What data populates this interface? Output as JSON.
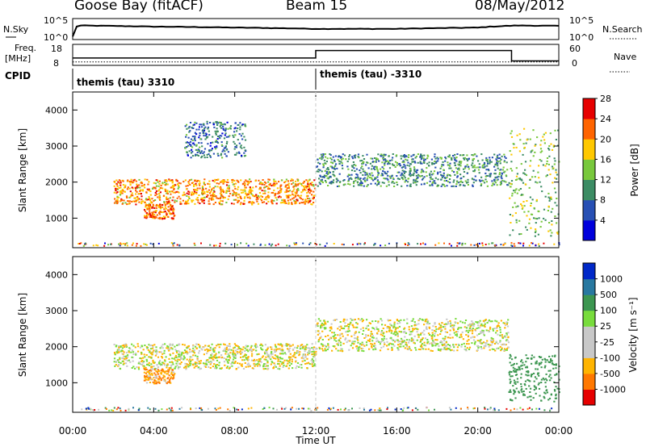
{
  "header": {
    "station": "Goose Bay (fitACF)",
    "beam": "Beam 15",
    "date": "08/May/2012"
  },
  "panels": {
    "nsky": {
      "left_label": "N.Sky",
      "right_label": "N.Search",
      "left_ticks": [
        "10^5",
        "10^0"
      ],
      "right_ticks": [
        "10^5",
        "10^0"
      ]
    },
    "freq": {
      "left_label": "Freq.",
      "left_unit": "[MHz]",
      "right_label": "Nave",
      "left_ticks": [
        "18",
        "8"
      ],
      "right_ticks": [
        "60",
        "0"
      ]
    },
    "cpid": {
      "label": "CPID",
      "segments": [
        {
          "text": "themis (tau) 3310",
          "start": "00:00",
          "end": "12:00"
        },
        {
          "text": "themis (tau) -3310",
          "start": "12:00",
          "end": "24:00"
        }
      ]
    }
  },
  "power_panel": {
    "ylabel": "Slant Range [km]",
    "yticks": [
      "1000",
      "2000",
      "3000",
      "4000"
    ],
    "colorbar_label": "Power [dB]",
    "colorbar_ticks": [
      "4",
      "8",
      "12",
      "16",
      "20",
      "24",
      "28"
    ]
  },
  "velocity_panel": {
    "ylabel": "Slant Range [km]",
    "yticks": [
      "1000",
      "2000",
      "3000",
      "4000"
    ],
    "colorbar_label": "Velocity  [m s⁻¹]",
    "colorbar_ticks": [
      "1000",
      "500",
      "100",
      "25",
      "-25",
      "-100",
      "-500",
      "-1000"
    ]
  },
  "xaxis": {
    "label": "Time UT",
    "ticks": [
      "00:00",
      "04:00",
      "08:00",
      "12:00",
      "16:00",
      "20:00",
      "00:00"
    ]
  },
  "chart_data": [
    {
      "type": "line",
      "title": "N.Sky / N.Search",
      "x": [
        "00:00",
        "00:20",
        "01:00",
        "04:00",
        "08:00",
        "12:00",
        "16:00",
        "20:00",
        "22:00",
        "24:00"
      ],
      "series": [
        {
          "name": "N.Sky",
          "values": [
            5,
            2200,
            2000,
            1200,
            700,
            350,
            350,
            700,
            2200,
            1800
          ]
        }
      ],
      "ylim": [
        1,
        100000
      ],
      "scale": "log"
    },
    {
      "type": "line",
      "title": "Freq. / Nave",
      "x": [
        "00:00",
        "12:00",
        "21:40",
        "24:00"
      ],
      "series": [
        {
          "name": "Freq.",
          "values": [
            10,
            10,
            10,
            10
          ]
        },
        {
          "name": "Nave",
          "values": [
            25,
            50,
            15,
            15
          ]
        }
      ]
    },
    {
      "type": "heatmap",
      "title": "Power [dB]",
      "xlabel": "Time UT",
      "ylabel": "Slant Range [km]",
      "xlim": [
        "00:00",
        "24:00"
      ],
      "ylim": [
        180,
        4500
      ],
      "colorscale": [
        "#0000dc",
        "#2850b4",
        "#3c8c64",
        "#78c83c",
        "#ffc800",
        "#ff6400",
        "#e60000"
      ],
      "features": [
        {
          "desc": "main band",
          "t_start": "02:00",
          "t_end": "12:00",
          "range_km": [
            1400,
            2100
          ],
          "power_db": 20
        },
        {
          "desc": "near range patch",
          "t_start": "03:30",
          "t_end": "05:00",
          "range_km": [
            1000,
            1400
          ],
          "power_db": 22
        },
        {
          "desc": "upper arc",
          "t_start": "05:30",
          "t_end": "08:30",
          "range_km": [
            2700,
            3700
          ],
          "power_db": 8
        },
        {
          "desc": "afternoon band",
          "t_start": "12:00",
          "t_end": "21:30",
          "range_km": [
            1900,
            2800
          ],
          "power_db": 10
        },
        {
          "desc": "late recovery",
          "t_start": "21:30",
          "t_end": "24:00",
          "range_km": [
            500,
            3500
          ],
          "power_db": 14
        }
      ]
    },
    {
      "type": "heatmap",
      "title": "Velocity [m s-1]",
      "xlabel": "Time UT",
      "ylabel": "Slant Range [km]",
      "xlim": [
        "00:00",
        "24:00"
      ],
      "ylim": [
        180,
        4500
      ],
      "colorscale": [
        "#0028c8",
        "#2878a0",
        "#3c9650",
        "#78dc3c",
        "#c8c8c8",
        "#c8c8c8",
        "#ffb400",
        "#ff7800",
        "#e60000"
      ],
      "features": [
        {
          "desc": "main band",
          "t_start": "02:00",
          "t_end": "12:00",
          "range_km": [
            1400,
            2100
          ],
          "velocity": 0
        },
        {
          "desc": "near range patch",
          "t_start": "03:30",
          "t_end": "05:00",
          "range_km": [
            1000,
            1400
          ],
          "velocity": -100
        },
        {
          "desc": "afternoon band",
          "t_start": "12:00",
          "t_end": "21:30",
          "range_km": [
            1900,
            2800
          ],
          "velocity": 0
        },
        {
          "desc": "late recovery",
          "t_start": "21:30",
          "t_end": "24:00",
          "range_km": [
            500,
            1800
          ],
          "velocity": 300
        }
      ]
    }
  ]
}
